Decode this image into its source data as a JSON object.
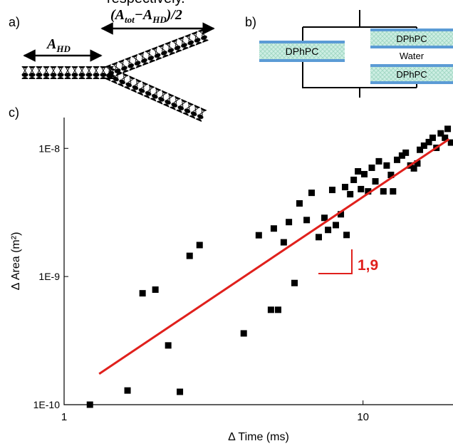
{
  "caption_fragment": "respectively.",
  "panel_a": {
    "label": "a)",
    "short_arrow_label": [
      {
        "text": "A"
      },
      {
        "sub": "HD"
      }
    ],
    "long_arrow_label": [
      {
        "text": "(A"
      },
      {
        "sub": "tot"
      },
      {
        "text": "−A"
      },
      {
        "sub": "HD"
      },
      {
        "text": ")/2"
      }
    ]
  },
  "panel_b": {
    "label": "b)",
    "left_membrane": "DPhPC",
    "right_top_membrane": "DPhPC",
    "right_middle": "Water",
    "right_bottom_membrane": "DPhPC"
  },
  "panel_c_label": "c)",
  "chart_data": {
    "type": "scatter",
    "x_label": "Δ Time (ms)",
    "y_label": "Δ Area (m²)",
    "log_x": true,
    "log_y": true,
    "xlim": [
      1,
      20
    ],
    "ylim": [
      1e-10,
      1.74e-08
    ],
    "xticks": [
      1,
      10
    ],
    "yticks": [
      {
        "value": 1e-10,
        "label": "1E-10"
      },
      {
        "value": 1e-09,
        "label": "1E-9"
      },
      {
        "value": 1e-08,
        "label": "1E-8"
      }
    ],
    "color": "#000000",
    "x": [
      1.22,
      1.63,
      1.83,
      2.02,
      2.23,
      2.44,
      2.63,
      2.84,
      3.99,
      4.48,
      4.92,
      5.03,
      5.2,
      5.43,
      5.65,
      5.9,
      6.13,
      6.48,
      6.73,
      7.11,
      7.43,
      7.64,
      7.89,
      8.11,
      8.43,
      8.71,
      8.81,
      9.06,
      9.31,
      9.62,
      9.84,
      10.1,
      10.4,
      10.7,
      11.0,
      11.3,
      11.7,
      12.0,
      12.4,
      12.6,
      13.0,
      13.5,
      13.9,
      14.4,
      14.8,
      15.2,
      15.5,
      16.0,
      16.6,
      17.1,
      17.6,
      18.2,
      18.8,
      19.2,
      19.7
    ],
    "values": [
      1e-10,
      1.29e-10,
      7.4e-10,
      7.9e-10,
      2.9e-10,
      1.26e-10,
      1.45e-09,
      1.76e-09,
      3.6e-10,
      2.1e-09,
      5.5e-10,
      2.37e-09,
      5.5e-10,
      1.85e-09,
      2.66e-09,
      8.9e-10,
      3.72e-09,
      2.76e-09,
      4.5e-09,
      2.03e-09,
      2.87e-09,
      2.31e-09,
      4.74e-09,
      2.52e-09,
      3.06e-09,
      4.99e-09,
      2.11e-09,
      4.39e-09,
      5.68e-09,
      6.62e-09,
      4.81e-09,
      6.29e-09,
      4.62e-09,
      7.06e-09,
      5.53e-09,
      7.93e-09,
      4.62e-09,
      7.35e-09,
      6.21e-09,
      4.62e-09,
      8.14e-09,
      8.79e-09,
      9.25e-09,
      7.35e-09,
      6.98e-09,
      7.63e-09,
      9.75e-09,
      1.05e-08,
      1.12e-08,
      1.21e-08,
      1.01e-08,
      1.31e-08,
      1.21e-08,
      1.42e-08,
      1.11e-08
    ],
    "fit": {
      "color": "#e0201c",
      "x": [
        1.31,
        19.4
      ],
      "values": [
        1.74e-10,
        1.18e-08
      ]
    },
    "slope_annotation": "1,9"
  }
}
